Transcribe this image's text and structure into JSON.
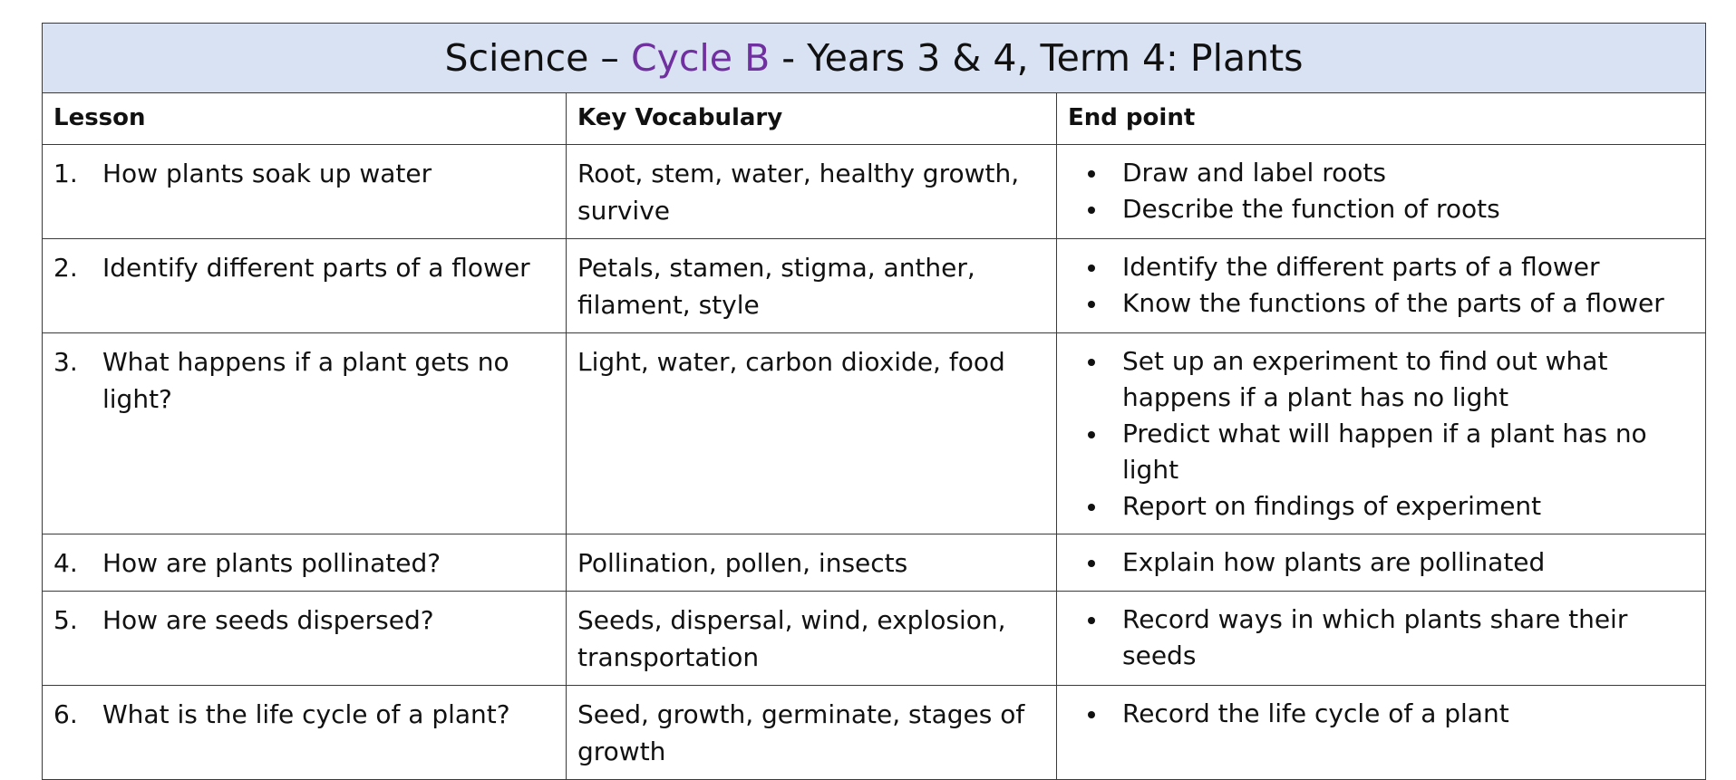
{
  "title": {
    "prefix": "Science – ",
    "accent": "Cycle B",
    "suffix": " - Years 3 & 4, Term 4: Plants",
    "accent_color": "#7030a0",
    "header_bg_color": "#d9e2f3"
  },
  "columns": {
    "lesson": "Lesson",
    "vocab": "Key Vocabulary",
    "endpoint": "End point"
  },
  "rows": [
    {
      "num": "1.",
      "lesson": "How plants soak up water",
      "vocab": "Root, stem, water, healthy growth, survive",
      "endpoints": [
        "Draw and label roots",
        "Describe the function of roots"
      ]
    },
    {
      "num": "2.",
      "lesson": "Identify different parts of a flower",
      "vocab": "Petals, stamen, stigma, anther, filament, style",
      "endpoints": [
        "Identify the different parts of a flower",
        "Know the functions of the parts of a flower"
      ]
    },
    {
      "num": "3.",
      "lesson": "What happens if a plant gets no light?",
      "vocab": "Light, water, carbon dioxide, food",
      "endpoints": [
        "Set up an experiment to find out what happens if a plant has no light",
        "Predict what will happen if a plant has no light",
        "Report on findings of experiment"
      ]
    },
    {
      "num": "4.",
      "lesson": "How are plants pollinated?",
      "vocab": "Pollination, pollen, insects",
      "endpoints": [
        "Explain how plants are pollinated"
      ]
    },
    {
      "num": "5.",
      "lesson": "How are seeds dispersed?",
      "vocab": "Seeds, dispersal, wind, explosion, transportation",
      "endpoints": [
        "Record ways in which plants share their seeds"
      ]
    },
    {
      "num": "6.",
      "lesson": "What is the life cycle of a plant?",
      "vocab": "Seed, growth, germinate, stages of growth",
      "endpoints": [
        "Record the life cycle of a plant"
      ]
    }
  ]
}
